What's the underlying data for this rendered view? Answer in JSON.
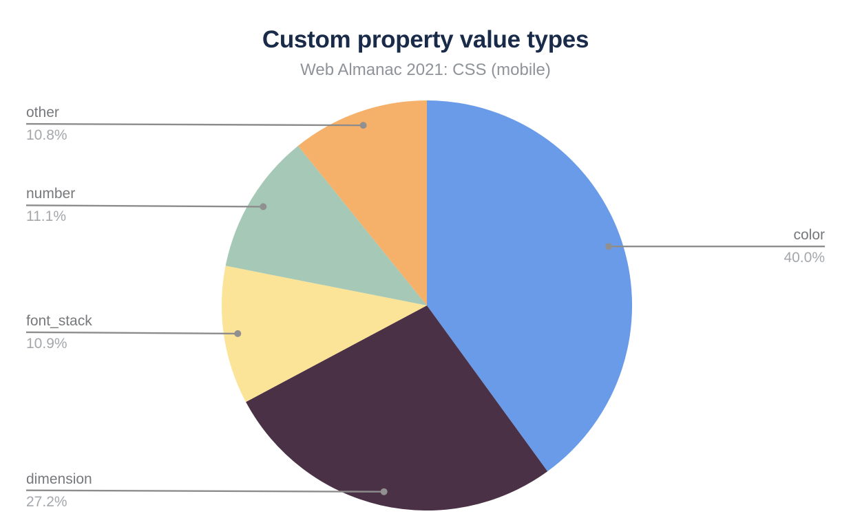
{
  "chart_data": {
    "type": "pie",
    "title": "Custom property value types",
    "subtitle": "Web Almanac 2021: CSS (mobile)",
    "unit": "%",
    "direction": "clockwise",
    "start_angle_deg": 0,
    "legend_position": "none",
    "slices": [
      {
        "label": "color",
        "value": 40.0,
        "display": "40.0%",
        "color": "#6A9BE9",
        "label_side": "right"
      },
      {
        "label": "dimension",
        "value": 27.2,
        "display": "27.2%",
        "color": "#4A3146",
        "label_side": "left"
      },
      {
        "label": "font_stack",
        "value": 10.9,
        "display": "10.9%",
        "color": "#FBE398",
        "label_side": "left"
      },
      {
        "label": "number",
        "value": 11.1,
        "display": "11.1%",
        "color": "#A6C9B7",
        "label_side": "left"
      },
      {
        "label": "other",
        "value": 10.8,
        "display": "10.8%",
        "color": "#F5B06A",
        "label_side": "left"
      }
    ]
  },
  "theme": {
    "background": "#FFFFFF",
    "title_color": "#1A2B49",
    "subtitle_color": "#8F9399",
    "label_color": "#76787B",
    "value_color": "#A4A7AB",
    "leader_line_color": "#8C8C8C",
    "leader_dot_color": "#909090"
  }
}
